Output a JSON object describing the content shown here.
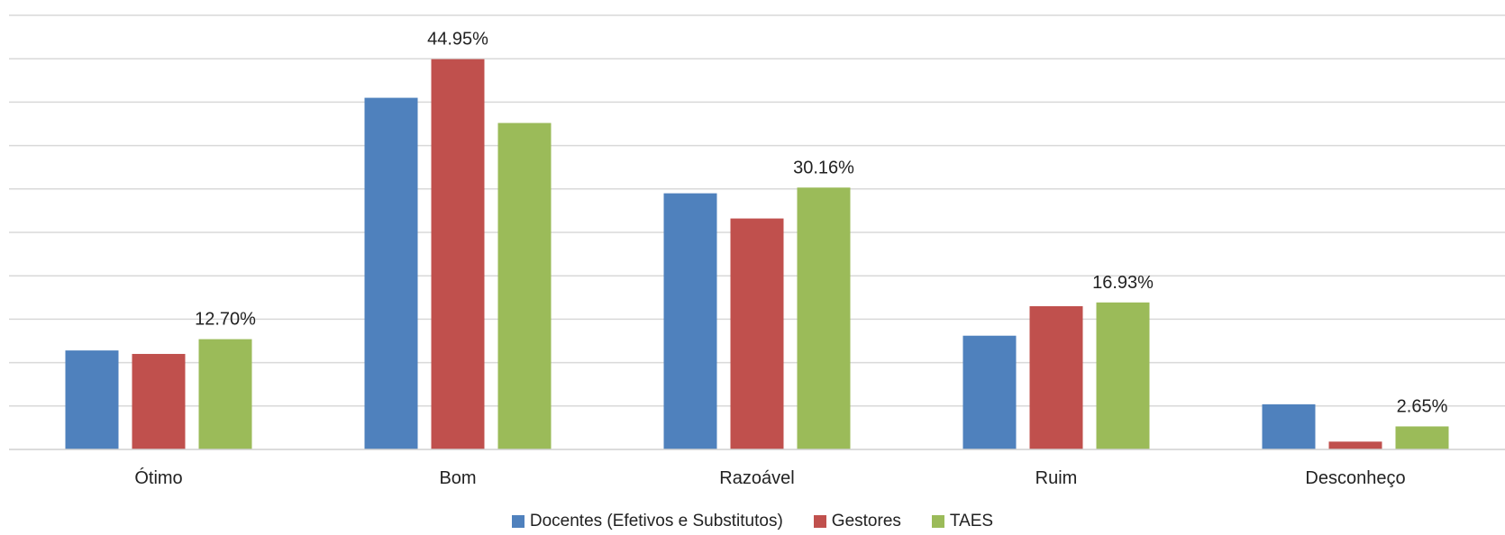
{
  "chart_data": {
    "type": "bar",
    "categories": [
      "Ótimo",
      "Bom",
      "Razoável",
      "Ruim",
      "Desconheço"
    ],
    "series": [
      {
        "name": "Docentes (Efetivos e Substitutos)",
        "color": "#4F81BD",
        "values": [
          11.4,
          40.5,
          29.5,
          13.1,
          5.2
        ]
      },
      {
        "name": "Gestores",
        "color": "#C0504D",
        "values": [
          11.0,
          44.95,
          26.6,
          16.5,
          0.9
        ]
      },
      {
        "name": "TAES",
        "color": "#9BBB59",
        "values": [
          12.7,
          37.6,
          30.16,
          16.93,
          2.65
        ],
        "labels": [
          "12.70%",
          "",
          "30.16%",
          "16.93%",
          "2.65%"
        ]
      }
    ],
    "annotations": [
      {
        "series": "Gestores",
        "category": "Bom",
        "text": "44.95%"
      }
    ],
    "ylim": [
      0,
      50
    ],
    "grid": true,
    "legend": "bottom-center"
  }
}
